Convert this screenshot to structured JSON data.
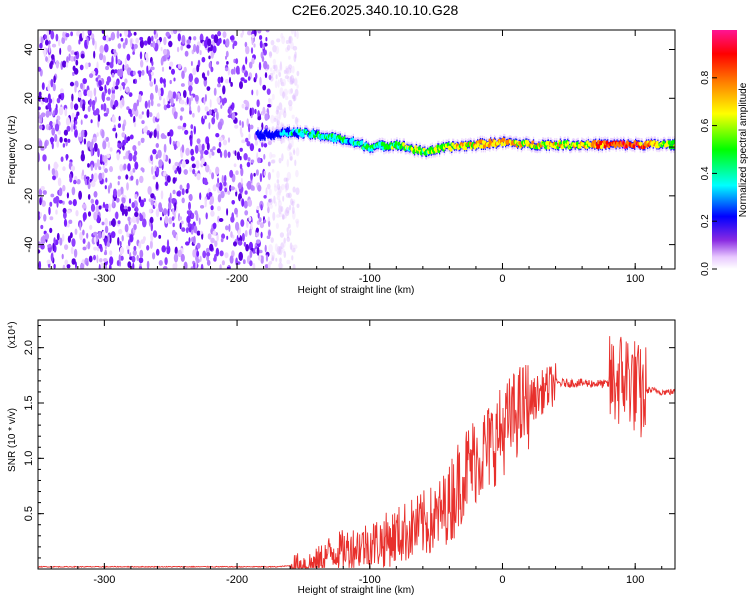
{
  "title": "C2E6.2025.340.10.10.G28",
  "chart_data": [
    {
      "type": "heatmap",
      "name": "spectrogram",
      "xlabel": "Height of straight line (km)",
      "ylabel": "Frequency (Hz)",
      "xlim": [
        -350,
        130
      ],
      "ylim": [
        -50,
        48
      ],
      "xticks": [
        -300,
        -200,
        -100,
        0,
        100
      ],
      "yticks": [
        -40,
        -20,
        0,
        20,
        40
      ],
      "colorbar": {
        "label": "Normalized spectral amplitude",
        "range": [
          0,
          1
        ],
        "ticks": [
          0.0,
          0.2,
          0.4,
          0.6,
          0.8
        ],
        "tick_labels": [
          "0.0",
          "0.2",
          "0.4",
          "0.6",
          "0.8"
        ]
      },
      "noise_region": {
        "x_range": [
          -350,
          -162
        ],
        "freq_range": [
          -50,
          48
        ]
      },
      "signal_track": {
        "x": [
          -180,
          -160,
          -140,
          -120,
          -100,
          -80,
          -60,
          -40,
          -20,
          0,
          20,
          40,
          60,
          80,
          100,
          130
        ],
        "frequency": [
          5,
          6,
          5,
          3,
          0,
          1,
          -2,
          0,
          1,
          2,
          1,
          1,
          1,
          1,
          1,
          1
        ],
        "amplitude": [
          0.2,
          0.4,
          0.45,
          0.45,
          0.45,
          0.55,
          0.6,
          0.65,
          0.75,
          0.8,
          0.7,
          0.7,
          0.7,
          0.9,
          0.9,
          0.6
        ]
      }
    },
    {
      "type": "line",
      "name": "snr",
      "xlabel": "Height of straight line (km)",
      "ylabel": "SNR (10 * v/v)",
      "y_scale_label": "(x10⁴)",
      "xlim": [
        -350,
        130
      ],
      "ylim": [
        0,
        2.25
      ],
      "xticks": [
        -300,
        -200,
        -100,
        0,
        100
      ],
      "yticks": [
        0.5,
        1.0,
        1.5,
        2.0
      ],
      "ytick_labels": [
        "0.5",
        "1.0",
        "1.5",
        "2.0"
      ],
      "color": "#e8302c",
      "series": [
        {
          "name": "SNR",
          "x": [
            -350,
            -300,
            -250,
            -200,
            -170,
            -140,
            -130,
            -110,
            -90,
            -70,
            -50,
            -40,
            -30,
            -20,
            -10,
            0,
            10,
            20,
            30,
            40,
            60,
            80,
            85,
            95,
            100,
            105,
            110,
            120,
            130
          ],
          "y": [
            0.02,
            0.02,
            0.02,
            0.02,
            0.02,
            0.05,
            0.15,
            0.2,
            0.25,
            0.35,
            0.45,
            0.6,
            0.85,
            1.0,
            1.1,
            1.25,
            1.4,
            1.5,
            1.6,
            1.68,
            1.68,
            1.67,
            1.7,
            1.75,
            1.65,
            1.55,
            1.62,
            1.6,
            1.6
          ]
        }
      ]
    }
  ]
}
